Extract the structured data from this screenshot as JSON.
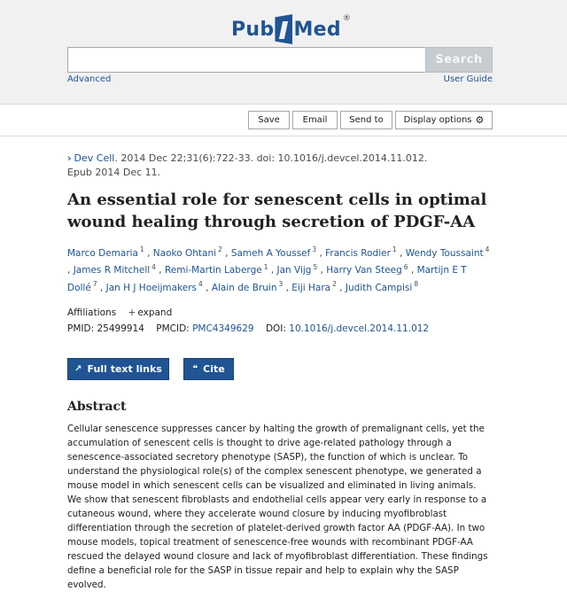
{
  "header": {
    "logo_left": "Pub",
    "logo_right": "Med",
    "logo_reg": "®",
    "search_value": "",
    "search_placeholder": "",
    "search_button": "Search",
    "advanced_link": "Advanced",
    "user_guide_link": "User Guide"
  },
  "toolbar": {
    "save": "Save",
    "email": "Email",
    "send_to": "Send to",
    "display_options": "Display options"
  },
  "article": {
    "journal": "Dev Cell",
    "citation": ". 2014 Dec 22;31(6):722-33. doi: 10.1016/j.devcel.2014.11.012.",
    "epub": "Epub 2014 Dec 11.",
    "title": "An essential role for senescent cells in optimal wound healing through secretion of PDGF-AA",
    "authors": [
      {
        "name": "Marco Demaria",
        "sup": "1"
      },
      {
        "name": "Naoko Ohtani",
        "sup": "2"
      },
      {
        "name": "Sameh A Youssef",
        "sup": "3"
      },
      {
        "name": "Francis Rodier",
        "sup": "1"
      },
      {
        "name": "Wendy Toussaint",
        "sup": "4"
      },
      {
        "name": "James R Mitchell",
        "sup": "4"
      },
      {
        "name": "Remi-Martin Laberge",
        "sup": "1"
      },
      {
        "name": "Jan Vijg",
        "sup": "5"
      },
      {
        "name": "Harry Van Steeg",
        "sup": "6"
      },
      {
        "name": "Martijn E T Dollé",
        "sup": "7"
      },
      {
        "name": "Jan H J Hoeijmakers",
        "sup": "4"
      },
      {
        "name": "Alain de Bruin",
        "sup": "3"
      },
      {
        "name": "Eiji Hara",
        "sup": "2"
      },
      {
        "name": "Judith Campisi",
        "sup": "8"
      }
    ],
    "affiliations_label": "Affiliations",
    "expand_label": "expand",
    "pmid_label": "PMID:",
    "pmid": "25499914",
    "pmcid_label": "PMCID:",
    "pmcid": "PMC4349629",
    "doi_label": "DOI:",
    "doi": "10.1016/j.devcel.2014.11.012",
    "full_text_button": "Full text links",
    "cite_button": "Cite",
    "abstract_heading": "Abstract",
    "abstract": "Cellular senescence suppresses cancer by halting the growth of premalignant cells, yet the accumulation of senescent cells is thought to drive age-related pathology through a senescence-associated secretory phenotype (SASP), the function of which is unclear. To understand the physiological role(s) of the complex senescent phenotype, we generated a mouse model in which senescent cells can be visualized and eliminated in living animals. We show that senescent fibroblasts and endothelial cells appear very early in response to a cutaneous wound, where they accelerate wound closure by inducing myofibroblast differentiation through the secretion of platelet-derived growth factor AA (PDGF-AA). In two mouse models, topical treatment of senescence-free wounds with recombinant PDGF-AA rescued the delayed wound closure and lack of myofibroblast differentiation. These findings define a beneficial role for the SASP in tissue repair and help to explain why the SASP evolved."
  }
}
